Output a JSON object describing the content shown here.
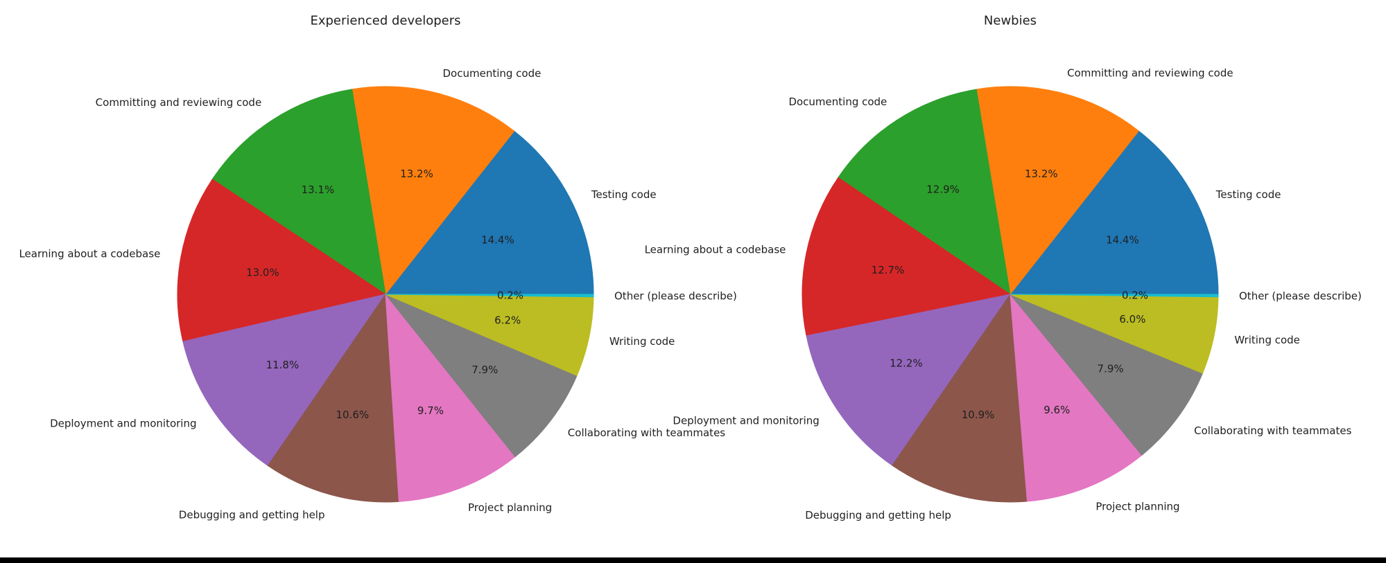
{
  "figure": {
    "background_color": "#ffffff",
    "bottom_bar_color": "#000000",
    "text_color": "#1f1f1f"
  },
  "chart_data": [
    {
      "type": "pie",
      "title": "Experienced developers",
      "labels": [
        "Testing code",
        "Documenting code",
        "Committing and reviewing code",
        "Learning about a codebase",
        "Deployment and monitoring",
        "Debugging and getting help",
        "Project planning",
        "Collaborating with teammates",
        "Writing code",
        "Other (please describe)"
      ],
      "values": [
        14.4,
        13.2,
        13.1,
        13.0,
        11.8,
        10.6,
        9.7,
        7.9,
        6.2,
        0.2
      ],
      "pct_labels": [
        "14.4%",
        "13.2%",
        "13.1%",
        "13.0%",
        "11.8%",
        "10.6%",
        "9.7%",
        "7.9%",
        "6.2%",
        "0.2%"
      ],
      "colors": [
        "#1f77b4",
        "#ff7f0e",
        "#2ca02c",
        "#d62728",
        "#9467bd",
        "#8c564b",
        "#e377c2",
        "#7f7f7f",
        "#bcbd22",
        "#17becf"
      ],
      "start_angle": 0,
      "counterclockwise": true,
      "label_distance": 1.1,
      "pct_distance": 0.6,
      "legend": false
    },
    {
      "type": "pie",
      "title": "Newbies",
      "labels": [
        "Testing code",
        "Committing and reviewing code",
        "Documenting code",
        "Learning about a codebase",
        "Deployment and monitoring",
        "Debugging and getting help",
        "Project planning",
        "Collaborating with teammates",
        "Writing code",
        "Other (please describe)"
      ],
      "values": [
        14.4,
        13.2,
        12.9,
        12.7,
        12.2,
        10.9,
        9.6,
        7.9,
        6.0,
        0.2
      ],
      "pct_labels": [
        "14.4%",
        "13.2%",
        "12.9%",
        "12.7%",
        "12.2%",
        "10.9%",
        "9.6%",
        "7.9%",
        "6.0%",
        "0.2%"
      ],
      "colors": [
        "#1f77b4",
        "#ff7f0e",
        "#2ca02c",
        "#d62728",
        "#9467bd",
        "#8c564b",
        "#e377c2",
        "#7f7f7f",
        "#bcbd22",
        "#17becf"
      ],
      "start_angle": 0,
      "counterclockwise": true,
      "label_distance": 1.1,
      "pct_distance": 0.6,
      "legend": false
    }
  ]
}
